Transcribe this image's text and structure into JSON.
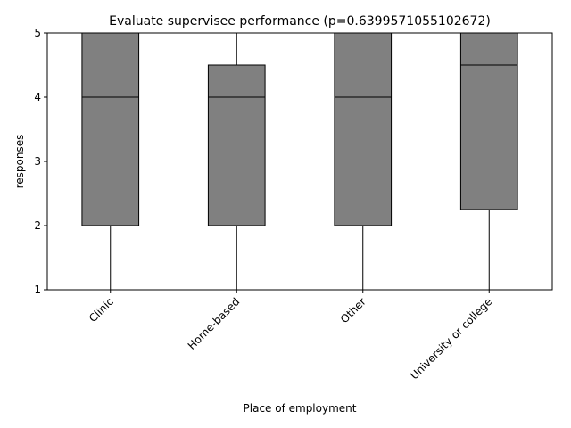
{
  "chart_data": {
    "type": "box",
    "title": "Evaluate supervisee performance (p=0.6399571055102672)",
    "xlabel": "Place of employment",
    "ylabel": "responses",
    "ylim": [
      1,
      5
    ],
    "yticks": [
      1,
      2,
      3,
      4,
      5
    ],
    "grid": false,
    "box_color": "#808080",
    "line_color": "#000000",
    "categories": [
      "Clinic",
      "Home-based",
      "Other",
      "University or college"
    ],
    "boxes": [
      {
        "category": "Clinic",
        "whisker_low": 1,
        "q1": 2,
        "median": 4,
        "q3": 5,
        "whisker_high": 5
      },
      {
        "category": "Home-based",
        "whisker_low": 1,
        "q1": 2,
        "median": 4,
        "q3": 4.5,
        "whisker_high": 5
      },
      {
        "category": "Other",
        "whisker_low": 1,
        "q1": 2,
        "median": 4,
        "q3": 5,
        "whisker_high": 5
      },
      {
        "category": "University or college",
        "whisker_low": 1,
        "q1": 2.25,
        "median": 4.5,
        "q3": 5,
        "whisker_high": 5
      }
    ]
  }
}
